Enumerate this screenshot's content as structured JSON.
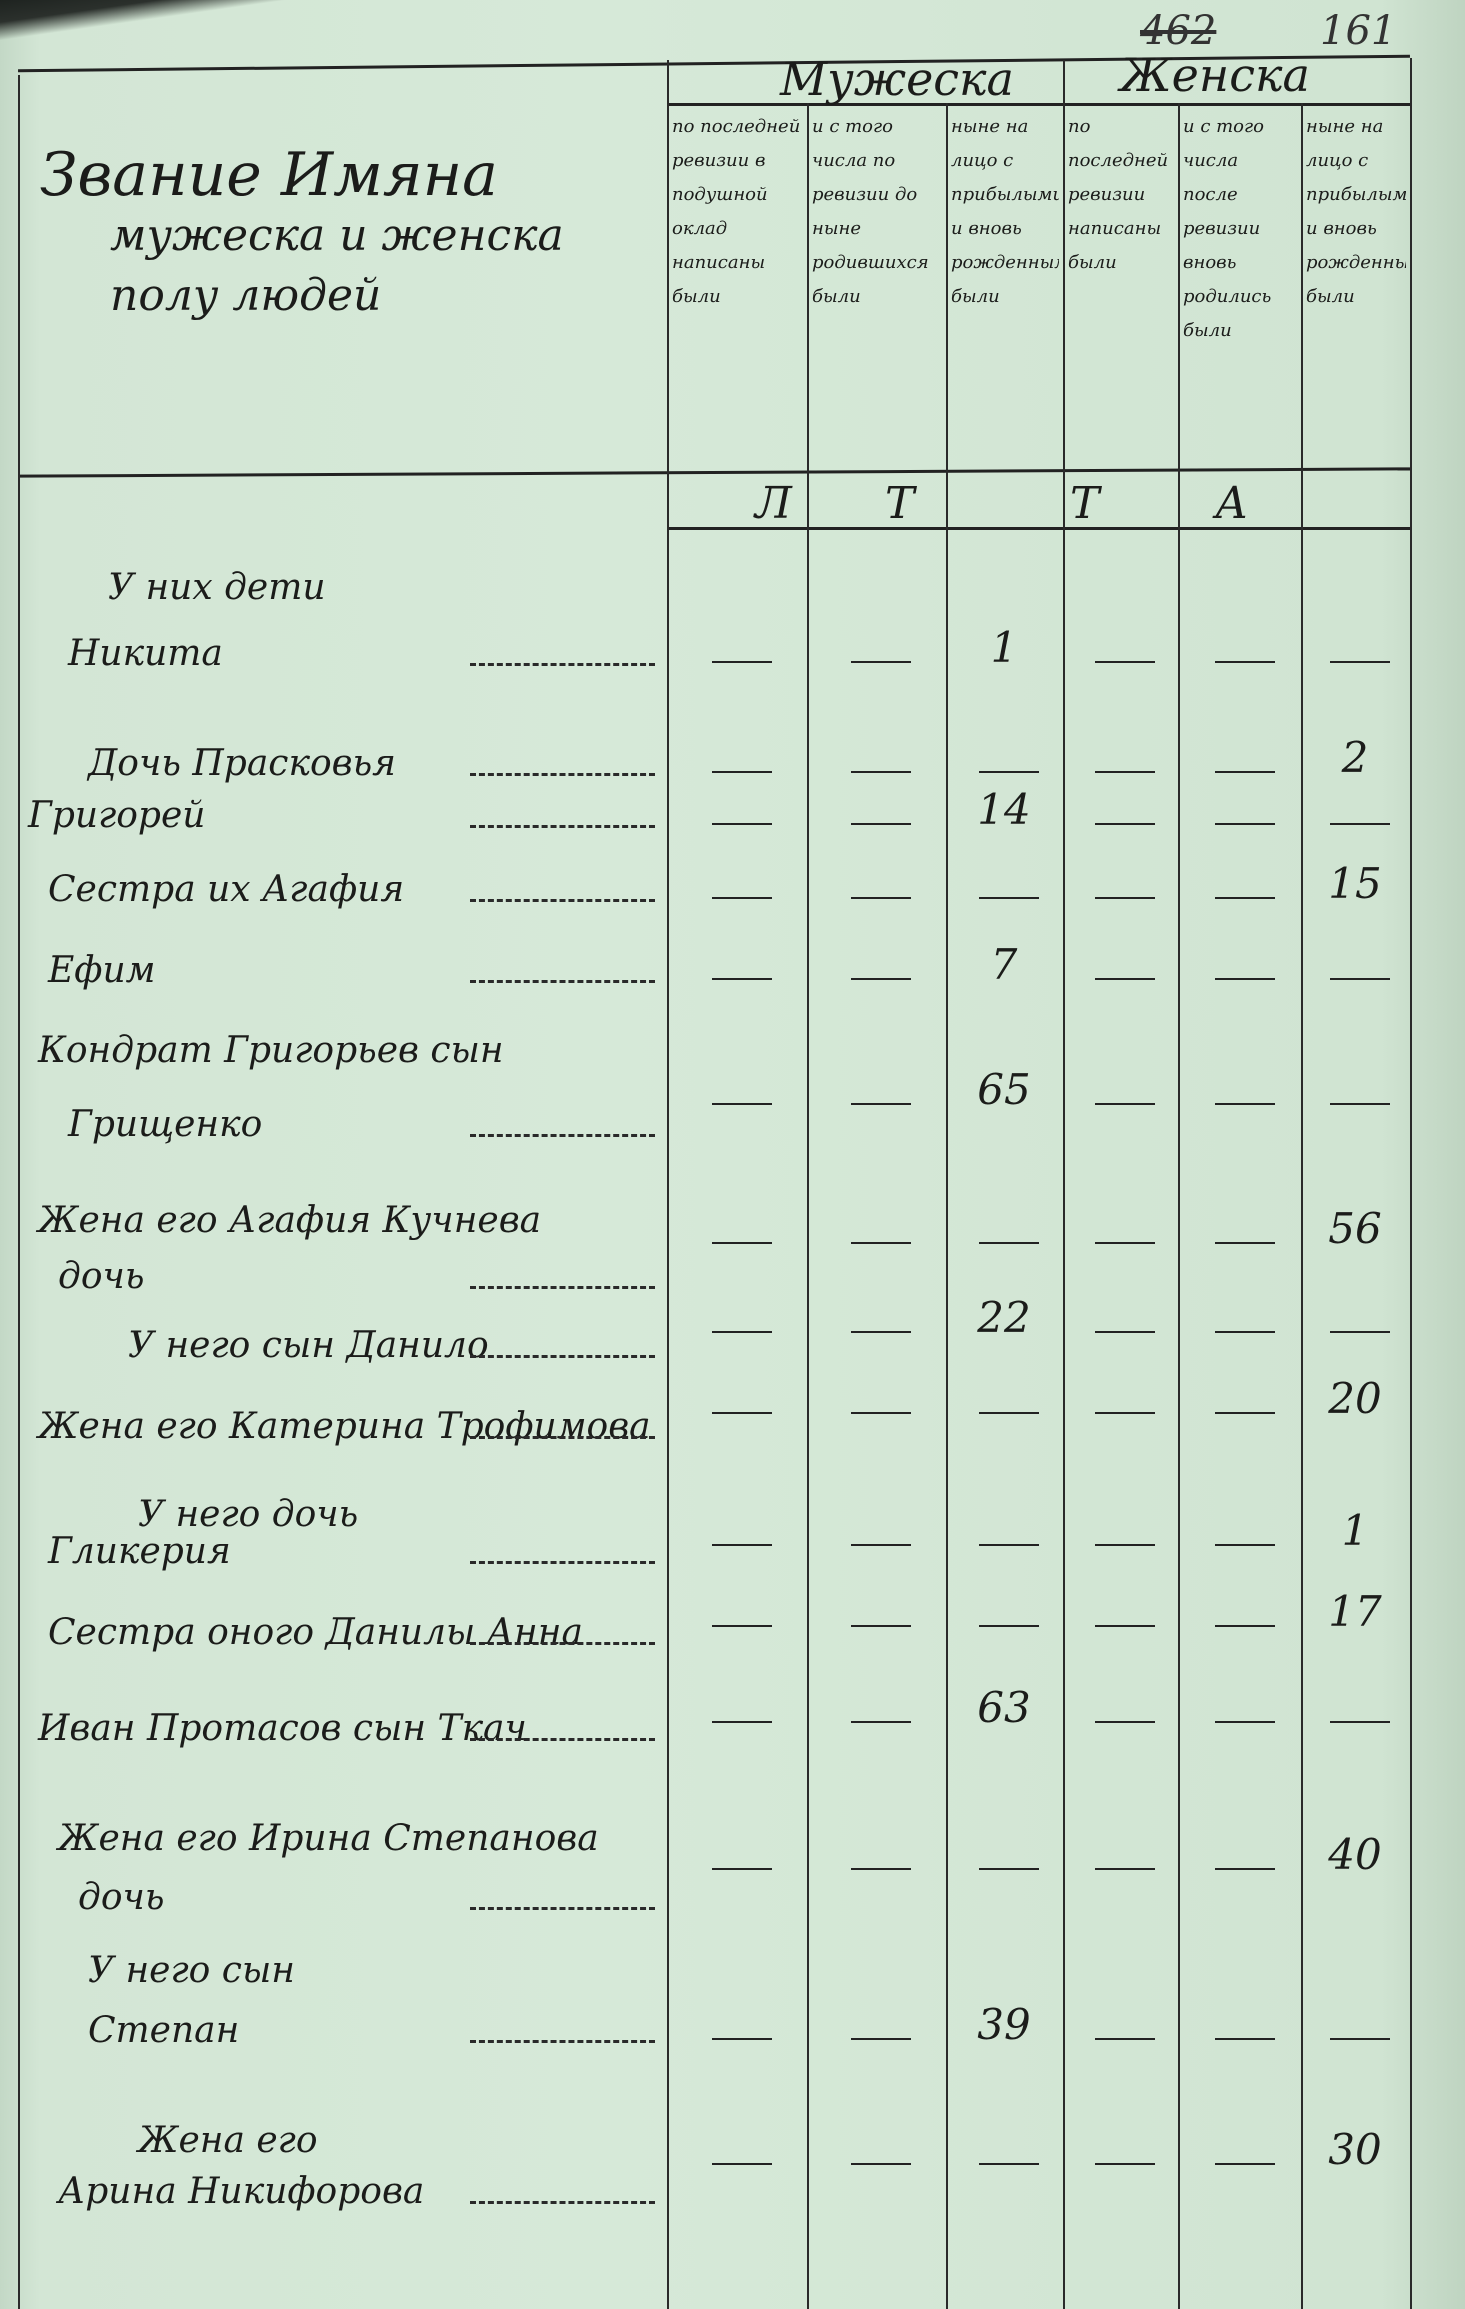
{
  "page_numbers": {
    "struck": "462",
    "current": "161"
  },
  "header": {
    "name_column": [
      "Звание Имяна",
      "мужеска и женска",
      "полу людей"
    ],
    "male_section": "Мужеска",
    "female_section": "Женска",
    "columns": [
      "по последней ревизии в подушной оклад написаны были",
      "и с того числа по ревизии до ныне родившихся были",
      "ныне на лицо с прибылыми и вновь рожденными были",
      "по последней ревизии написаны были",
      "и с того числа после ревизии вновь родились были",
      "ныне на лицо с прибылыми и вновь рожденными были"
    ],
    "unit_letters": [
      "Л",
      "Т",
      "Т",
      "А"
    ]
  },
  "entries": [
    {
      "lines": [
        "У них дети",
        "Никита"
      ],
      "col": 2,
      "age": "1"
    },
    {
      "lines": [
        "Дочь Прасковья"
      ],
      "col": 5,
      "age": "2"
    },
    {
      "lines": [
        "Григорей"
      ],
      "col": 2,
      "age": "14"
    },
    {
      "lines": [
        "Сестра их Агафия"
      ],
      "col": 5,
      "age": "15"
    },
    {
      "lines": [
        "Ефим"
      ],
      "col": 2,
      "age": "7"
    },
    {
      "lines": [
        "Кондрат Григорьев сын",
        "Грищенко"
      ],
      "col": 2,
      "age": "65"
    },
    {
      "lines": [
        "Жена его Агафия Кучнева",
        "дочь"
      ],
      "col": 5,
      "age": "56"
    },
    {
      "lines": [
        "У него сын Данило"
      ],
      "col": 2,
      "age": "22"
    },
    {
      "lines": [
        "Жена его Катерина Трофимова"
      ],
      "col": 5,
      "age": "20"
    },
    {
      "lines": [
        "У него дочь",
        "Гликерия"
      ],
      "col": 5,
      "age": "1"
    },
    {
      "lines": [
        "Сестра оного Данилы Анна"
      ],
      "col": 5,
      "age": "17"
    },
    {
      "lines": [
        "Иван Протасов сын Ткач"
      ],
      "col": 2,
      "age": "63"
    },
    {
      "lines": [
        "Жена его Ирина Степанова",
        "дочь"
      ],
      "col": 5,
      "age": "40"
    },
    {
      "lines": [
        "У него сын",
        "Степан"
      ],
      "col": 2,
      "age": "39"
    },
    {
      "lines": [
        "Жена его",
        "Арина Никифорова"
      ],
      "col": 5,
      "age": "30"
    }
  ],
  "colors": {
    "paper": "#d6e9d8",
    "ink": "#1b1c1a"
  }
}
